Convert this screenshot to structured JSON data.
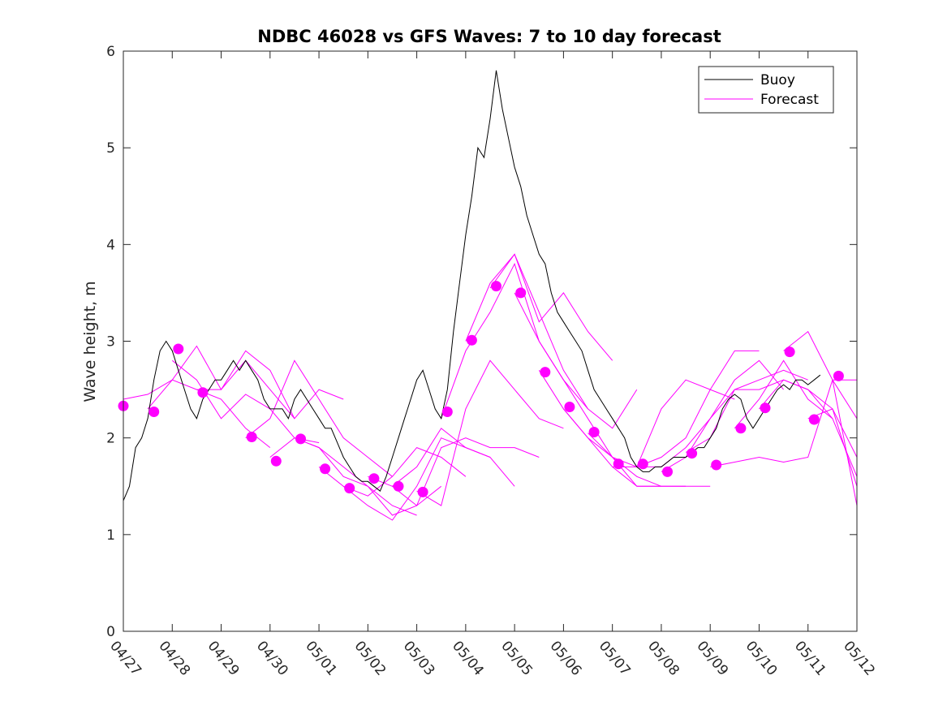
{
  "chart_data": {
    "type": "line",
    "title": "NDBC 46028 vs GFS Waves: 7 to 10 day forecast",
    "xlabel": "",
    "ylabel": "Wave height, m",
    "xlim": [
      "2020-04-27",
      "2020-05-12"
    ],
    "ylim": [
      0,
      6
    ],
    "yticks": [
      0,
      1,
      2,
      3,
      4,
      5,
      6
    ],
    "xtick_labels": [
      "04/27",
      "04/28",
      "04/29",
      "04/30",
      "05/01",
      "05/02",
      "05/03",
      "05/04",
      "05/05",
      "05/06",
      "05/07",
      "05/08",
      "05/09",
      "05/10",
      "05/11",
      "05/12"
    ],
    "grid": false,
    "legend": {
      "placement": "top-right",
      "entries": [
        {
          "label": "Buoy",
          "color": "#000000"
        },
        {
          "label": "Forecast",
          "color": "#ff00ff"
        }
      ]
    },
    "colors": {
      "buoy": "#000000",
      "forecast": "#ff00ff",
      "axes": "#262626"
    },
    "buoy": {
      "name": "Buoy",
      "x": [
        "2020-04-27T00:00",
        "2020-04-27T03:00",
        "2020-04-27T06:00",
        "2020-04-27T09:00",
        "2020-04-27T12:00",
        "2020-04-27T15:00",
        "2020-04-27T18:00",
        "2020-04-27T21:00",
        "2020-04-28T00:00",
        "2020-04-28T03:00",
        "2020-04-28T06:00",
        "2020-04-28T09:00",
        "2020-04-28T12:00",
        "2020-04-28T15:00",
        "2020-04-28T18:00",
        "2020-04-28T21:00",
        "2020-04-29T00:00",
        "2020-04-29T03:00",
        "2020-04-29T06:00",
        "2020-04-29T09:00",
        "2020-04-29T12:00",
        "2020-04-29T15:00",
        "2020-04-29T18:00",
        "2020-04-29T21:00",
        "2020-04-30T00:00",
        "2020-04-30T03:00",
        "2020-04-30T06:00",
        "2020-04-30T09:00",
        "2020-04-30T12:00",
        "2020-04-30T15:00",
        "2020-04-30T18:00",
        "2020-04-30T21:00",
        "2020-05-01T00:00",
        "2020-05-01T03:00",
        "2020-05-01T06:00",
        "2020-05-01T09:00",
        "2020-05-01T12:00",
        "2020-05-01T15:00",
        "2020-05-01T18:00",
        "2020-05-01T21:00",
        "2020-05-02T00:00",
        "2020-05-02T03:00",
        "2020-05-02T06:00",
        "2020-05-02T09:00",
        "2020-05-02T12:00",
        "2020-05-02T15:00",
        "2020-05-02T18:00",
        "2020-05-02T21:00",
        "2020-05-03T00:00",
        "2020-05-03T03:00",
        "2020-05-03T06:00",
        "2020-05-03T09:00",
        "2020-05-03T12:00",
        "2020-05-03T15:00",
        "2020-05-03T18:00",
        "2020-05-03T21:00",
        "2020-05-04T00:00",
        "2020-05-04T03:00",
        "2020-05-04T06:00",
        "2020-05-04T09:00",
        "2020-05-04T12:00",
        "2020-05-04T15:00",
        "2020-05-04T18:00",
        "2020-05-04T21:00",
        "2020-05-05T00:00",
        "2020-05-05T03:00",
        "2020-05-05T06:00",
        "2020-05-05T09:00",
        "2020-05-05T12:00",
        "2020-05-05T15:00",
        "2020-05-05T18:00",
        "2020-05-05T21:00",
        "2020-05-06T00:00",
        "2020-05-06T03:00",
        "2020-05-06T06:00",
        "2020-05-06T09:00",
        "2020-05-06T12:00",
        "2020-05-06T15:00",
        "2020-05-06T18:00",
        "2020-05-06T21:00",
        "2020-05-07T00:00",
        "2020-05-07T03:00",
        "2020-05-07T06:00",
        "2020-05-07T09:00",
        "2020-05-07T12:00",
        "2020-05-07T15:00",
        "2020-05-07T18:00",
        "2020-05-07T21:00",
        "2020-05-08T00:00",
        "2020-05-08T03:00",
        "2020-05-08T06:00",
        "2020-05-08T09:00",
        "2020-05-08T12:00",
        "2020-05-08T15:00",
        "2020-05-08T18:00",
        "2020-05-08T21:00",
        "2020-05-09T00:00",
        "2020-05-09T03:00",
        "2020-05-09T06:00",
        "2020-05-09T09:00",
        "2020-05-09T12:00",
        "2020-05-09T15:00",
        "2020-05-09T18:00",
        "2020-05-09T21:00",
        "2020-05-10T00:00",
        "2020-05-10T03:00",
        "2020-05-10T06:00",
        "2020-05-10T09:00",
        "2020-05-10T12:00",
        "2020-05-10T15:00",
        "2020-05-10T18:00",
        "2020-05-10T21:00",
        "2020-05-11T00:00",
        "2020-05-11T03:00",
        "2020-05-11T06:00"
      ],
      "values": [
        1.35,
        1.5,
        1.9,
        2.0,
        2.2,
        2.6,
        2.9,
        3.0,
        2.9,
        2.7,
        2.5,
        2.3,
        2.2,
        2.4,
        2.5,
        2.6,
        2.6,
        2.7,
        2.8,
        2.7,
        2.8,
        2.7,
        2.6,
        2.4,
        2.3,
        2.3,
        2.3,
        2.2,
        2.4,
        2.5,
        2.4,
        2.3,
        2.2,
        2.1,
        2.1,
        1.95,
        1.8,
        1.7,
        1.6,
        1.55,
        1.55,
        1.5,
        1.45,
        1.6,
        1.8,
        2.0,
        2.2,
        2.4,
        2.6,
        2.7,
        2.5,
        2.3,
        2.2,
        2.5,
        3.1,
        3.6,
        4.1,
        4.5,
        5.0,
        4.9,
        5.3,
        5.8,
        5.4,
        5.1,
        4.8,
        4.6,
        4.3,
        4.1,
        3.9,
        3.8,
        3.5,
        3.3,
        3.2,
        3.1,
        3.0,
        2.9,
        2.7,
        2.5,
        2.4,
        2.3,
        2.2,
        2.1,
        2.0,
        1.8,
        1.7,
        1.65,
        1.65,
        1.7,
        1.7,
        1.75,
        1.8,
        1.8,
        1.8,
        1.85,
        1.9,
        1.9,
        2.0,
        2.1,
        2.3,
        2.4,
        2.45,
        2.4,
        2.2,
        2.1,
        2.2,
        2.3,
        2.4,
        2.5,
        2.55,
        2.5,
        2.6,
        2.6,
        2.55,
        2.6,
        2.65
      ]
    },
    "forecast_runs": [
      {
        "x": [
          "2020-04-27T00:00",
          "2020-04-27T12:00",
          "2020-04-28T00:00",
          "2020-04-28T12:00",
          "2020-04-29T00:00",
          "2020-04-29T12:00",
          "2020-04-30T00:00"
        ],
        "values": [
          2.4,
          2.45,
          2.6,
          2.5,
          2.4,
          2.1,
          1.9
        ]
      },
      {
        "x": [
          "2020-04-27T12:00",
          "2020-04-28T00:00",
          "2020-04-28T12:00",
          "2020-04-29T00:00",
          "2020-04-29T12:00",
          "2020-04-30T00:00",
          "2020-04-30T12:00"
        ],
        "values": [
          2.3,
          2.6,
          2.95,
          2.5,
          2.8,
          2.5,
          2.2
        ]
      },
      {
        "x": [
          "2020-04-28T00:00",
          "2020-04-28T12:00",
          "2020-04-29T00:00",
          "2020-04-29T12:00",
          "2020-04-30T00:00",
          "2020-04-30T12:00",
          "2020-05-01T00:00"
        ],
        "values": [
          2.8,
          2.6,
          2.2,
          2.45,
          2.3,
          2.0,
          1.95
        ]
      },
      {
        "x": [
          "2020-04-28T12:00",
          "2020-04-29T00:00",
          "2020-04-29T12:00",
          "2020-04-30T00:00",
          "2020-04-30T12:00",
          "2020-05-01T00:00",
          "2020-05-01T12:00"
        ],
        "values": [
          2.5,
          2.5,
          2.9,
          2.7,
          2.2,
          2.5,
          2.4
        ]
      },
      {
        "x": [
          "2020-04-29T12:00",
          "2020-04-30T00:00",
          "2020-04-30T12:00",
          "2020-05-01T00:00",
          "2020-05-01T12:00",
          "2020-05-02T00:00",
          "2020-05-02T12:00"
        ],
        "values": [
          2.0,
          2.2,
          2.8,
          2.4,
          2.0,
          1.8,
          1.6
        ]
      },
      {
        "x": [
          "2020-04-30T00:00",
          "2020-04-30T12:00",
          "2020-05-01T00:00",
          "2020-05-01T12:00",
          "2020-05-02T00:00",
          "2020-05-02T12:00",
          "2020-05-03T00:00"
        ],
        "values": [
          1.8,
          2.0,
          1.9,
          1.6,
          1.5,
          1.3,
          1.2
        ]
      },
      {
        "x": [
          "2020-04-30T12:00",
          "2020-05-01T00:00",
          "2020-05-01T12:00",
          "2020-05-02T00:00",
          "2020-05-02T12:00",
          "2020-05-03T00:00",
          "2020-05-03T12:00"
        ],
        "values": [
          2.0,
          1.9,
          1.7,
          1.5,
          1.2,
          1.3,
          1.5
        ]
      },
      {
        "x": [
          "2020-05-01T00:00",
          "2020-05-01T12:00",
          "2020-05-02T00:00",
          "2020-05-02T12:00",
          "2020-05-03T00:00",
          "2020-05-03T12:00",
          "2020-05-04T00:00"
        ],
        "values": [
          1.7,
          1.5,
          1.4,
          1.6,
          1.9,
          1.8,
          1.6
        ]
      },
      {
        "x": [
          "2020-05-01T12:00",
          "2020-05-02T00:00",
          "2020-05-02T12:00",
          "2020-05-03T00:00",
          "2020-05-03T12:00",
          "2020-05-04T00:00",
          "2020-05-04T12:00"
        ],
        "values": [
          1.5,
          1.3,
          1.15,
          1.5,
          2.0,
          1.9,
          1.8
        ]
      },
      {
        "x": [
          "2020-05-02T00:00",
          "2020-05-02T12:00",
          "2020-05-03T00:00",
          "2020-05-03T12:00",
          "2020-05-04T00:00",
          "2020-05-04T12:00",
          "2020-05-05T00:00"
        ],
        "values": [
          1.6,
          1.5,
          1.7,
          2.1,
          1.9,
          1.8,
          1.5
        ]
      },
      {
        "x": [
          "2020-05-02T12:00",
          "2020-05-03T00:00",
          "2020-05-03T12:00",
          "2020-05-04T00:00",
          "2020-05-04T12:00",
          "2020-05-05T00:00",
          "2020-05-05T12:00"
        ],
        "values": [
          1.5,
          1.3,
          1.9,
          2.0,
          1.9,
          1.9,
          1.8
        ]
      },
      {
        "x": [
          "2020-05-03T00:00",
          "2020-05-03T12:00",
          "2020-05-04T00:00",
          "2020-05-04T12:00",
          "2020-05-05T00:00",
          "2020-05-05T12:00",
          "2020-05-06T00:00"
        ],
        "values": [
          1.45,
          1.3,
          2.3,
          2.8,
          2.5,
          2.2,
          2.1
        ]
      },
      {
        "x": [
          "2020-05-03T12:00",
          "2020-05-04T00:00",
          "2020-05-04T12:00",
          "2020-05-05T00:00",
          "2020-05-05T12:00",
          "2020-05-06T00:00",
          "2020-05-06T12:00"
        ],
        "values": [
          2.2,
          2.9,
          3.3,
          3.8,
          3.0,
          2.6,
          2.3
        ]
      },
      {
        "x": [
          "2020-05-04T00:00",
          "2020-05-04T12:00",
          "2020-05-05T00:00",
          "2020-05-05T12:00",
          "2020-05-06T00:00",
          "2020-05-06T12:00",
          "2020-05-07T00:00"
        ],
        "values": [
          3.0,
          3.6,
          3.9,
          3.2,
          3.5,
          3.1,
          2.8
        ]
      },
      {
        "x": [
          "2020-05-04T12:00",
          "2020-05-05T00:00",
          "2020-05-05T12:00",
          "2020-05-06T00:00",
          "2020-05-06T12:00",
          "2020-05-07T00:00",
          "2020-05-07T12:00"
        ],
        "values": [
          3.55,
          3.9,
          3.3,
          2.7,
          2.3,
          2.1,
          2.5
        ]
      },
      {
        "x": [
          "2020-05-05T00:00",
          "2020-05-05T12:00",
          "2020-05-06T00:00",
          "2020-05-06T12:00",
          "2020-05-07T00:00",
          "2020-05-07T12:00",
          "2020-05-08T00:00"
        ],
        "values": [
          3.5,
          3.0,
          2.6,
          2.2,
          1.8,
          1.6,
          1.5
        ]
      },
      {
        "x": [
          "2020-05-05T12:00",
          "2020-05-06T00:00",
          "2020-05-06T12:00",
          "2020-05-07T00:00",
          "2020-05-07T12:00",
          "2020-05-08T00:00",
          "2020-05-08T12:00"
        ],
        "values": [
          2.7,
          2.3,
          2.0,
          1.8,
          1.5,
          1.5,
          1.5
        ]
      },
      {
        "x": [
          "2020-05-06T00:00",
          "2020-05-06T12:00",
          "2020-05-07T00:00",
          "2020-05-07T12:00",
          "2020-05-08T00:00",
          "2020-05-08T12:00",
          "2020-05-09T00:00"
        ],
        "values": [
          2.3,
          2.0,
          1.7,
          1.5,
          1.5,
          1.5,
          1.5
        ]
      },
      {
        "x": [
          "2020-05-06T12:00",
          "2020-05-07T00:00",
          "2020-05-07T12:00",
          "2020-05-08T00:00",
          "2020-05-08T12:00",
          "2020-05-09T00:00",
          "2020-05-09T12:00"
        ],
        "values": [
          2.05,
          1.8,
          1.7,
          2.3,
          2.6,
          2.5,
          2.4
        ]
      },
      {
        "x": [
          "2020-05-07T00:00",
          "2020-05-07T12:00",
          "2020-05-08T00:00",
          "2020-05-08T12:00",
          "2020-05-09T00:00",
          "2020-05-09T12:00",
          "2020-05-10T00:00"
        ],
        "values": [
          1.7,
          1.7,
          1.8,
          2.0,
          2.5,
          2.9,
          2.9
        ]
      },
      {
        "x": [
          "2020-05-07T12:00",
          "2020-05-08T00:00",
          "2020-05-08T12:00",
          "2020-05-09T00:00",
          "2020-05-09T12:00",
          "2020-05-10T00:00",
          "2020-05-10T12:00"
        ],
        "values": [
          1.7,
          1.7,
          1.9,
          2.2,
          2.6,
          2.8,
          2.5
        ]
      },
      {
        "x": [
          "2020-05-08T00:00",
          "2020-05-08T12:00",
          "2020-05-09T00:00",
          "2020-05-09T12:00",
          "2020-05-10T00:00",
          "2020-05-10T12:00",
          "2020-05-11T00:00"
        ],
        "values": [
          1.65,
          1.8,
          2.2,
          2.5,
          2.6,
          2.7,
          2.6
        ]
      },
      {
        "x": [
          "2020-05-08T12:00",
          "2020-05-09T00:00",
          "2020-05-09T12:00",
          "2020-05-10T00:00",
          "2020-05-10T12:00",
          "2020-05-11T00:00",
          "2020-05-11T12:00"
        ],
        "values": [
          1.85,
          2.0,
          2.5,
          2.5,
          2.6,
          2.5,
          2.2
        ]
      },
      {
        "x": [
          "2020-05-09T00:00",
          "2020-05-09T12:00",
          "2020-05-10T00:00",
          "2020-05-10T12:00",
          "2020-05-11T00:00",
          "2020-05-11T12:00",
          "2020-05-12T00:00"
        ],
        "values": [
          1.7,
          1.75,
          1.8,
          1.75,
          1.8,
          2.6,
          2.2
        ]
      },
      {
        "x": [
          "2020-05-09T12:00",
          "2020-05-10T00:00",
          "2020-05-10T12:00",
          "2020-05-11T00:00",
          "2020-05-11T12:00",
          "2020-05-12T00:00"
        ],
        "values": [
          2.1,
          2.4,
          2.8,
          2.4,
          2.2,
          1.6
        ]
      },
      {
        "x": [
          "2020-05-10T00:00",
          "2020-05-10T12:00",
          "2020-05-11T00:00",
          "2020-05-11T12:00",
          "2020-05-12T00:00"
        ],
        "values": [
          2.3,
          2.6,
          2.5,
          2.3,
          1.5
        ]
      },
      {
        "x": [
          "2020-05-10T12:00",
          "2020-05-11T00:00",
          "2020-05-11T12:00",
          "2020-05-12T00:00"
        ],
        "values": [
          2.9,
          3.1,
          2.6,
          1.3
        ]
      },
      {
        "x": [
          "2020-05-11T00:00",
          "2020-05-11T12:00",
          "2020-05-12T00:00"
        ],
        "values": [
          2.2,
          2.3,
          1.8
        ]
      },
      {
        "x": [
          "2020-05-11T12:00",
          "2020-05-12T00:00"
        ],
        "values": [
          2.6,
          2.6
        ]
      }
    ],
    "forecast_points": {
      "x": [
        "2020-04-27T00:00",
        "2020-04-27T15:00",
        "2020-04-28T03:00",
        "2020-04-28T15:00",
        "2020-04-29T15:00",
        "2020-04-30T03:00",
        "2020-04-30T15:00",
        "2020-05-01T03:00",
        "2020-05-01T15:00",
        "2020-05-02T03:00",
        "2020-05-02T15:00",
        "2020-05-03T03:00",
        "2020-05-03T15:00",
        "2020-05-04T03:00",
        "2020-05-04T15:00",
        "2020-05-05T03:00",
        "2020-05-05T15:00",
        "2020-05-06T03:00",
        "2020-05-06T15:00",
        "2020-05-07T03:00",
        "2020-05-07T15:00",
        "2020-05-08T03:00",
        "2020-05-08T15:00",
        "2020-05-09T03:00",
        "2020-05-09T15:00",
        "2020-05-10T03:00",
        "2020-05-10T15:00",
        "2020-05-11T03:00",
        "2020-05-11T15:00"
      ],
      "values": [
        2.33,
        2.27,
        2.92,
        2.47,
        2.01,
        1.76,
        1.99,
        1.68,
        1.48,
        1.58,
        1.5,
        1.44,
        2.27,
        3.01,
        3.57,
        3.5,
        2.68,
        2.32,
        2.06,
        1.73,
        1.73,
        1.65,
        1.84,
        1.72,
        2.1,
        2.31,
        2.89,
        2.19,
        2.64
      ]
    }
  }
}
